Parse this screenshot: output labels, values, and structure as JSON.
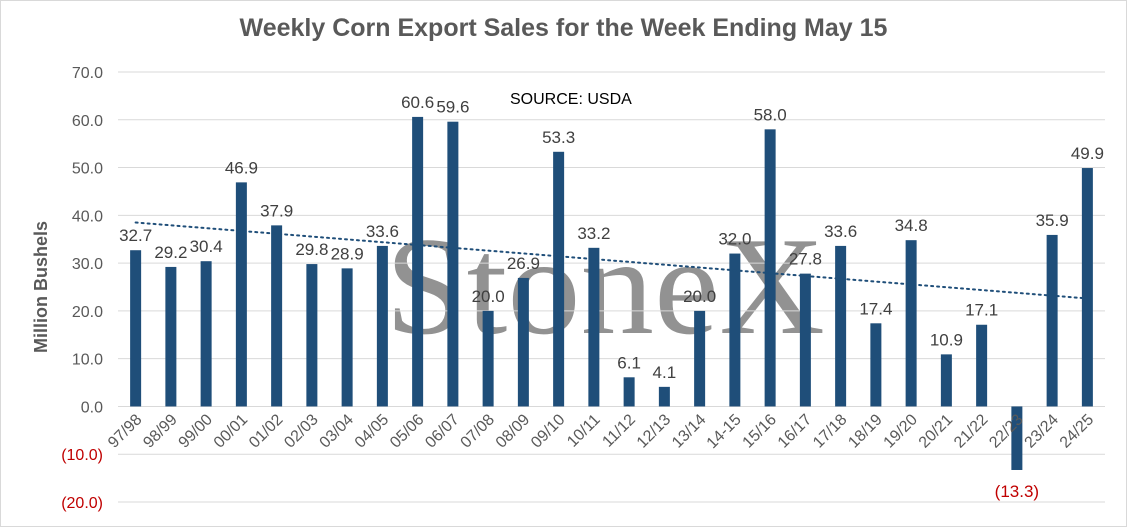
{
  "chart_data": {
    "type": "bar",
    "title": "Weekly Corn Export Sales for the Week Ending May  15",
    "ylabel": "Million Bushels",
    "xlabel": "",
    "ylim": [
      -20,
      70
    ],
    "yticks": [
      70,
      60,
      50,
      40,
      30,
      20,
      10,
      0,
      -10,
      -20
    ],
    "ytick_labels": [
      "70.0",
      "60.0",
      "50.0",
      "40.0",
      "30.0",
      "20.0",
      "10.0",
      "0.0",
      "(10.0)",
      "(20.0)"
    ],
    "grid": true,
    "legend": "none",
    "annotation": "SOURCE: USDA",
    "watermark": "StoneX",
    "trendline": {
      "style": "dotted",
      "start": 38.5,
      "end": 22.6
    },
    "categories": [
      "97/98",
      "98/99",
      "99/00",
      "00/01",
      "01/02",
      "02/03",
      "03/04",
      "04/05",
      "05/06",
      "06/07",
      "07/08",
      "08/09",
      "09/10",
      "10/11",
      "11/12",
      "12/13",
      "13/14",
      "14-15",
      "15/16",
      "16/17",
      "17/18",
      "18/19",
      "19/20",
      "20/21",
      "21/22",
      "22/23",
      "23/24",
      "24/25"
    ],
    "values": [
      32.7,
      29.2,
      30.4,
      46.9,
      37.9,
      29.8,
      28.9,
      33.6,
      60.6,
      59.6,
      20.0,
      26.9,
      53.3,
      33.2,
      6.1,
      4.1,
      20.0,
      32.0,
      58.0,
      27.8,
      33.6,
      17.4,
      34.8,
      10.9,
      17.1,
      -13.3,
      35.9,
      49.9
    ],
    "value_labels": [
      "32.7",
      "29.2",
      "30.4",
      "46.9",
      "37.9",
      "29.8",
      "28.9",
      "33.6",
      "60.6",
      "59.6",
      "20.0",
      "26.9",
      "53.3",
      "33.2",
      "6.1",
      "4.1",
      "20.0",
      "32.0",
      "58.0",
      "27.8",
      "33.6",
      "17.4",
      "34.8",
      "10.9",
      "17.1",
      "(13.3)",
      "35.9",
      "49.9"
    ],
    "bar_color": "#1f4e79",
    "negative_label_color": "#c00000",
    "trendline_color": "#1f4e79"
  }
}
